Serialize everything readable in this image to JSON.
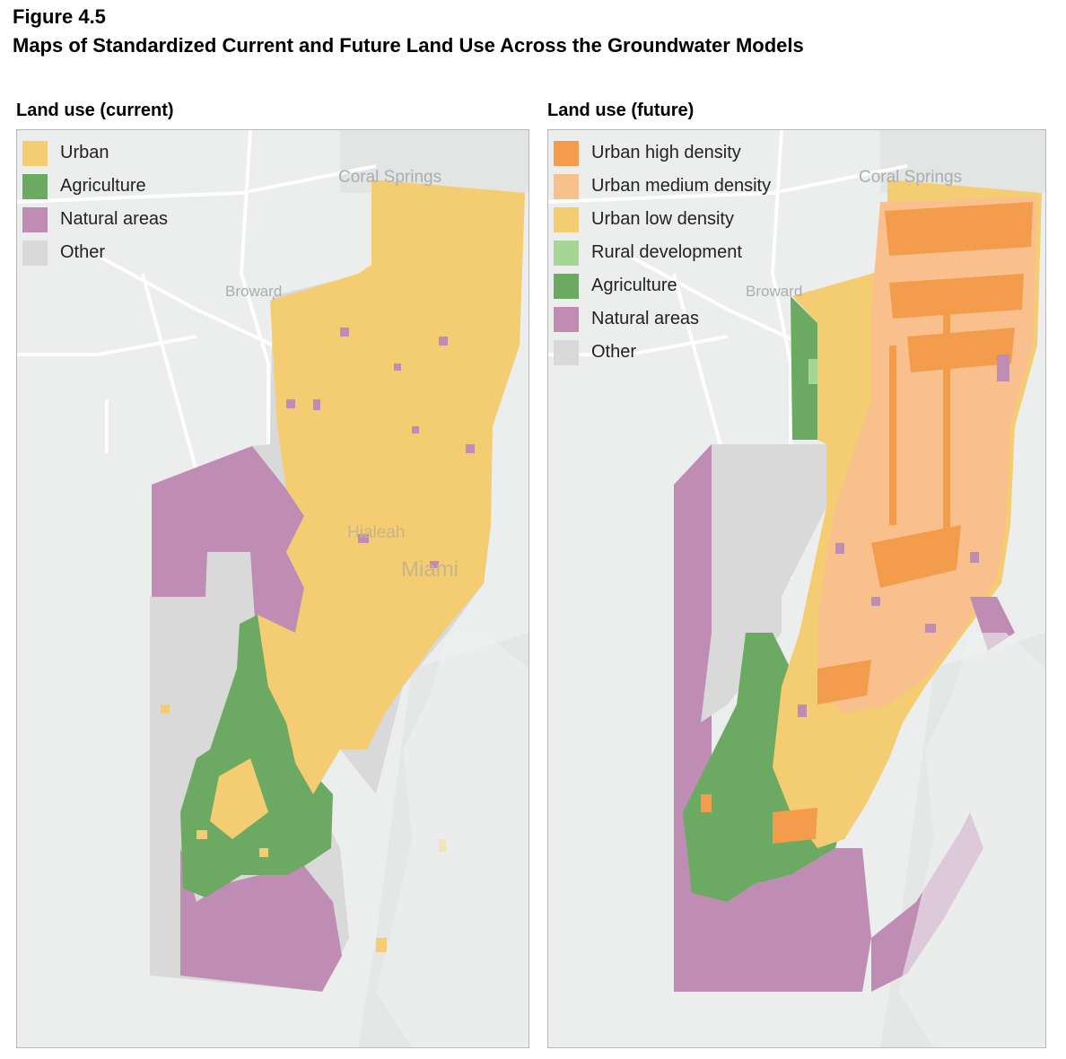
{
  "figure": {
    "label": "Figure 4.5",
    "title": "Maps of Standardized Current and Future Land Use Across the Groundwater Models"
  },
  "panels": [
    {
      "title": "Land use (current)",
      "legend": [
        {
          "label": "Urban",
          "color": "#f4cd73"
        },
        {
          "label": "Agriculture",
          "color": "#6caa64"
        },
        {
          "label": "Natural areas",
          "color": "#bf8cb3"
        },
        {
          "label": "Other",
          "color": "#d9d9d9"
        }
      ],
      "place_labels": [
        "Coral Springs",
        "Broward",
        "Hialeah",
        "Miami"
      ]
    },
    {
      "title": "Land use (future)",
      "legend": [
        {
          "label": "Urban high density",
          "color": "#f39c4c"
        },
        {
          "label": "Urban medium density",
          "color": "#f9c08e"
        },
        {
          "label": "Urban low density",
          "color": "#f4cd73"
        },
        {
          "label": "Rural development",
          "color": "#a6d598"
        },
        {
          "label": "Agriculture",
          "color": "#6caa64"
        },
        {
          "label": "Natural areas",
          "color": "#bf8cb3"
        },
        {
          "label": "Other",
          "color": "#d9d9d9"
        }
      ],
      "place_labels": [
        "Coral Springs",
        "Broward"
      ]
    }
  ]
}
